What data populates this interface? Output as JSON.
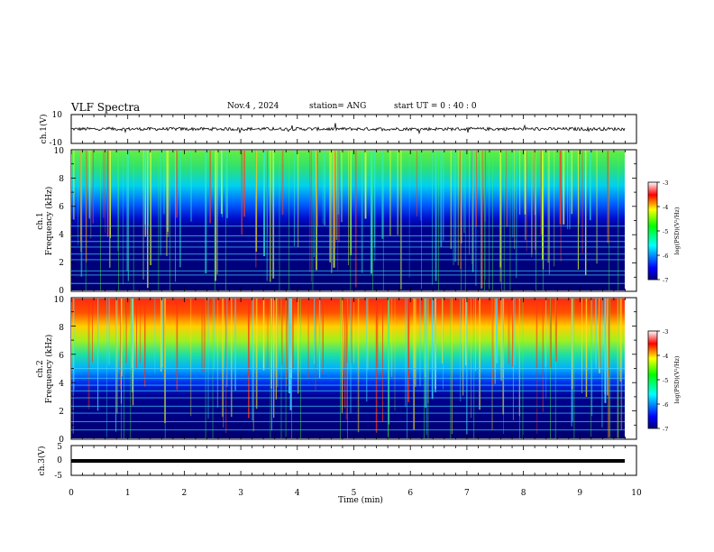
{
  "header": {
    "title": "VLF Spectra",
    "date": "Nov.4 , 2024",
    "station": "station= ANG",
    "start": "start UT = 0 : 40 : 0"
  },
  "chart_data": [
    {
      "type": "line",
      "panel": "ch1-waveform",
      "ylabel": "ch.1(V)",
      "yticks": [
        "10",
        "-10"
      ],
      "ylim": [
        -10,
        10
      ],
      "baseline": 0,
      "description_series": "noisy waveform near 0 V"
    },
    {
      "type": "heatmap",
      "panel": "ch1-spectrogram",
      "ylabel": "ch.1\nFrequency (kHz)",
      "ylabel_line1": "ch.1",
      "ylabel_line2": "Frequency (kHz)",
      "yticks": [
        "0",
        "2",
        "4",
        "6",
        "8",
        "10"
      ],
      "ylim": [
        0,
        10
      ],
      "colorbar": {
        "label": "log(PSD)(V²/Hz)",
        "ticks": [
          "-3",
          "-4",
          "-5",
          "-6",
          "-7"
        ],
        "range": [
          -7,
          -3
        ]
      },
      "lines_khz": [
        0.5,
        1.1,
        1.4,
        2.2,
        2.6,
        3.1,
        3.5,
        3.9,
        4.6
      ]
    },
    {
      "type": "heatmap",
      "panel": "ch2-spectrogram",
      "ylabel_line1": "ch.2",
      "ylabel_line2": "Frequency (kHz)",
      "yticks": [
        "0",
        "2",
        "4",
        "6",
        "8",
        "10"
      ],
      "ylim": [
        0,
        10
      ],
      "colorbar": {
        "label": "log(PSD)(V²/Hz)",
        "ticks": [
          "-3",
          "-4",
          "-5",
          "-6",
          "-7"
        ],
        "range": [
          -7,
          -3
        ]
      },
      "lines_khz": [
        0.6,
        1.2,
        1.8,
        2.3,
        2.9,
        3.4,
        3.8,
        4.3,
        5.0
      ]
    },
    {
      "type": "line",
      "panel": "ch3-waveform",
      "ylabel": "ch.3(V)",
      "yticks": [
        "5",
        "0",
        "-5"
      ],
      "ylim": [
        -5,
        5
      ],
      "baseline": 0
    }
  ],
  "xaxis": {
    "label": "Time (min)",
    "ticks": [
      "0",
      "1",
      "2",
      "3",
      "4",
      "5",
      "6",
      "7",
      "8",
      "9",
      "10"
    ],
    "xlim": [
      0,
      10
    ]
  }
}
